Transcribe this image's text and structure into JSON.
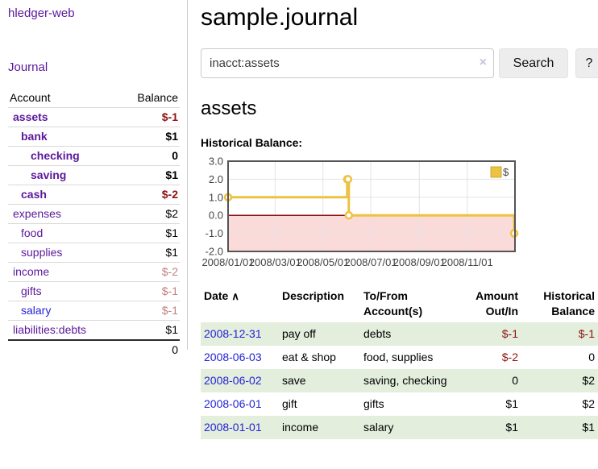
{
  "app": {
    "name": "hledger-web"
  },
  "sidebar": {
    "journal_link": "Journal",
    "accounts": {
      "col_account": "Account",
      "col_balance": "Balance",
      "rows": [
        {
          "name": "assets",
          "balance": "$-1",
          "indent": 1,
          "name_bold": true,
          "name_color": "purple",
          "balance_style": "neg-bold"
        },
        {
          "name": "bank",
          "balance": "$1",
          "indent": 2,
          "name_bold": true,
          "name_color": "purple",
          "balance_style": "bold"
        },
        {
          "name": "checking",
          "balance": "0",
          "indent": 3,
          "name_bold": true,
          "name_color": "purple",
          "balance_style": "bold"
        },
        {
          "name": "saving",
          "balance": "$1",
          "indent": 3,
          "name_bold": true,
          "name_color": "purple",
          "balance_style": "bold"
        },
        {
          "name": "cash",
          "balance": "$-2",
          "indent": 2,
          "name_bold": true,
          "name_color": "purple",
          "balance_style": "neg-bold"
        },
        {
          "name": "expenses",
          "balance": "$2",
          "indent": 1,
          "name_bold": false,
          "name_color": "purple",
          "balance_style": "normal"
        },
        {
          "name": "food",
          "balance": "$1",
          "indent": 2,
          "name_bold": false,
          "name_color": "purple",
          "balance_style": "normal"
        },
        {
          "name": "supplies",
          "balance": "$1",
          "indent": 2,
          "name_bold": false,
          "name_color": "purple",
          "balance_style": "normal"
        },
        {
          "name": "income",
          "balance": "$-2",
          "indent": 1,
          "name_bold": false,
          "name_color": "purple",
          "balance_style": "neg-soft"
        },
        {
          "name": "gifts",
          "balance": "$-1",
          "indent": 2,
          "name_bold": false,
          "name_color": "purple",
          "balance_style": "neg-soft"
        },
        {
          "name": "salary",
          "balance": "$-1",
          "indent": 2,
          "name_bold": false,
          "name_color": "blue",
          "balance_style": "neg-soft"
        },
        {
          "name": "liabilities:debts",
          "balance": "$1",
          "indent": 1,
          "name_bold": false,
          "name_color": "purple",
          "balance_style": "normal"
        }
      ],
      "total": "0"
    }
  },
  "main": {
    "title": "sample.journal",
    "search": {
      "value": "inacct:assets",
      "clear_icon": "×",
      "search_label": "Search",
      "help_label": "?"
    },
    "heading": "assets",
    "chart_label": "Historical Balance:"
  },
  "chart_data": {
    "type": "line",
    "title": "Historical Balance:",
    "step": true,
    "series": [
      {
        "name": "$",
        "points": [
          [
            "2008-01-01",
            1
          ],
          [
            "2008-06-01",
            2
          ],
          [
            "2008-06-02",
            2
          ],
          [
            "2008-06-03",
            0
          ],
          [
            "2008-12-31",
            -1
          ]
        ],
        "color": "#edc240"
      }
    ],
    "xlim": [
      "2008-01-01",
      "2009-01-01"
    ],
    "ylim": [
      -2,
      3
    ],
    "xticks": [
      {
        "label": "2008/01/01",
        "date": "2008-01-01"
      },
      {
        "label": "2008/03/01",
        "date": "2008-03-01"
      },
      {
        "label": "2008/05/01",
        "date": "2008-05-01"
      },
      {
        "label": "2008/07/01",
        "date": "2008-07-01"
      },
      {
        "label": "2008/09/01",
        "date": "2008-09-01"
      },
      {
        "label": "2008/11/01",
        "date": "2008-11-01"
      }
    ],
    "yticks": [
      {
        "label": "3.0",
        "value": 3
      },
      {
        "label": "2.0",
        "value": 2
      },
      {
        "label": "1.0",
        "value": 1
      },
      {
        "label": "0.0",
        "value": 0
      },
      {
        "label": "-1.0",
        "value": -1
      },
      {
        "label": "-2.0",
        "value": -2
      }
    ],
    "legend": {
      "label": "$",
      "position": "top-right"
    },
    "grid": true,
    "negative_region_color": "#fbdada",
    "zero_line_color": "#8e1212",
    "grid_color": "#e3e3e3",
    "border_color": "#545454",
    "tick_color": "#444444"
  },
  "register_table": {
    "headers": {
      "date": "Date",
      "sort_icon": "∧",
      "description": "Description",
      "accounts": "To/From Account(s)",
      "amount": "Amount Out/In",
      "balance": "Historical Balance"
    },
    "rows": [
      {
        "date": "2008-12-31",
        "description": "pay off",
        "accounts": "debts",
        "amount": "$-1",
        "balance": "$-1"
      },
      {
        "date": "2008-06-03",
        "description": "eat & shop",
        "accounts": "food, supplies",
        "amount": "$-2",
        "balance": "0"
      },
      {
        "date": "2008-06-02",
        "description": "save",
        "accounts": "saving, checking",
        "amount": "0",
        "balance": "$2"
      },
      {
        "date": "2008-06-01",
        "description": "gift",
        "accounts": "gifts",
        "amount": "$1",
        "balance": "$2"
      },
      {
        "date": "2008-01-01",
        "description": "income",
        "accounts": "salary",
        "amount": "$1",
        "balance": "$1"
      }
    ]
  },
  "colors": {
    "link_purple": "#5b189b",
    "link_blue": "#2323d6",
    "negative_strong": "#8e1212",
    "negative_soft": "#c17e7e",
    "zebra_green": "#e3eedd",
    "series_gold": "#edc240"
  }
}
